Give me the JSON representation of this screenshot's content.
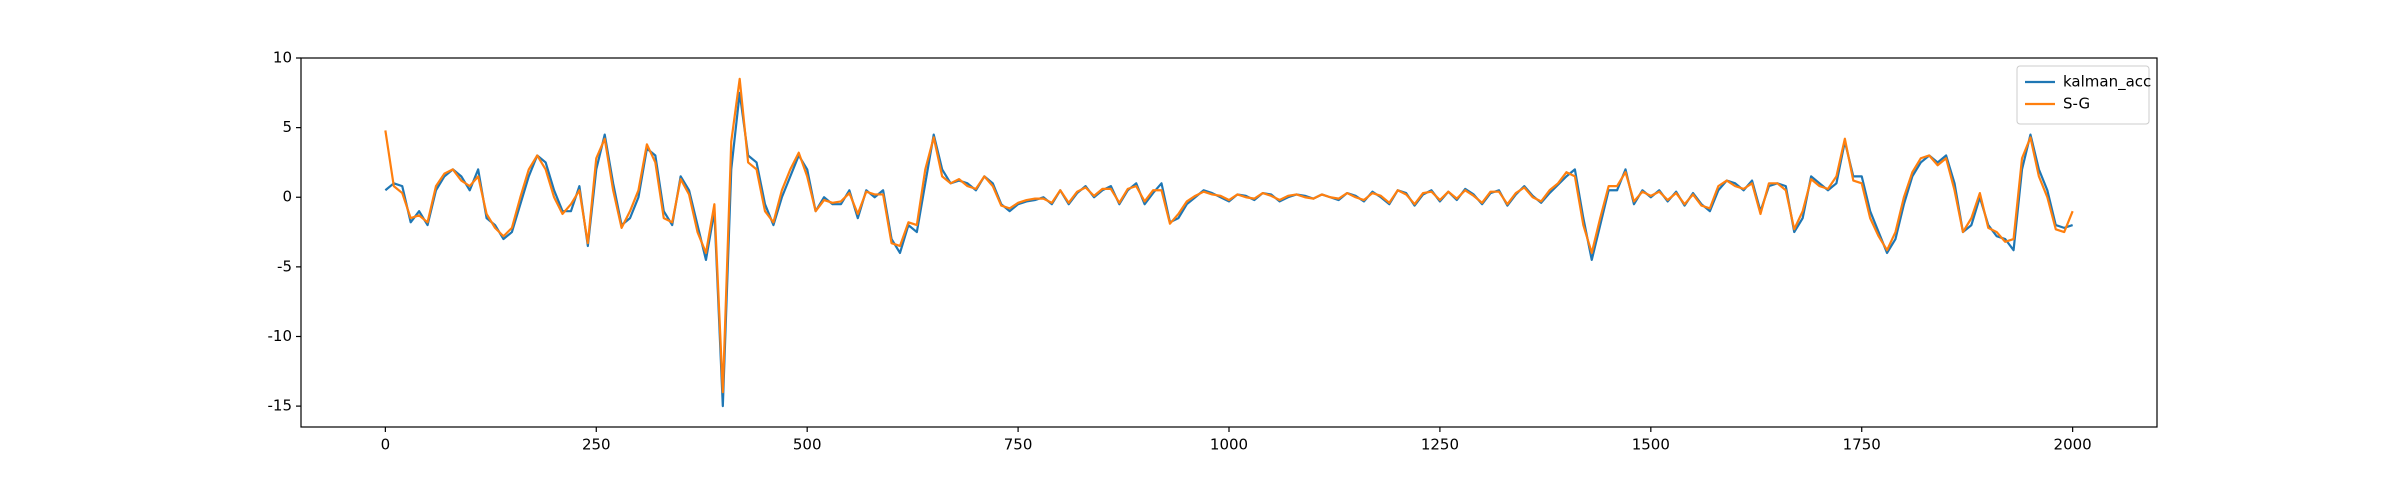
{
  "chart_data": {
    "type": "line",
    "x": [
      0,
      10,
      20,
      30,
      40,
      50,
      60,
      70,
      80,
      90,
      100,
      110,
      120,
      130,
      140,
      150,
      160,
      170,
      180,
      190,
      200,
      210,
      220,
      230,
      240,
      250,
      260,
      270,
      280,
      290,
      300,
      310,
      320,
      330,
      340,
      350,
      360,
      370,
      380,
      390,
      400,
      410,
      420,
      430,
      440,
      450,
      460,
      470,
      480,
      490,
      500,
      510,
      520,
      530,
      540,
      550,
      560,
      570,
      580,
      590,
      600,
      610,
      620,
      630,
      640,
      650,
      660,
      670,
      680,
      690,
      700,
      710,
      720,
      730,
      740,
      750,
      760,
      770,
      780,
      790,
      800,
      810,
      820,
      830,
      840,
      850,
      860,
      870,
      880,
      890,
      900,
      910,
      920,
      930,
      940,
      950,
      960,
      970,
      980,
      990,
      1000,
      1010,
      1020,
      1030,
      1040,
      1050,
      1060,
      1070,
      1080,
      1090,
      1100,
      1110,
      1120,
      1130,
      1140,
      1150,
      1160,
      1170,
      1180,
      1190,
      1200,
      1210,
      1220,
      1230,
      1240,
      1250,
      1260,
      1270,
      1280,
      1290,
      1300,
      1310,
      1320,
      1330,
      1340,
      1350,
      1360,
      1370,
      1380,
      1390,
      1400,
      1410,
      1420,
      1430,
      1440,
      1450,
      1460,
      1470,
      1480,
      1490,
      1500,
      1510,
      1520,
      1530,
      1540,
      1550,
      1560,
      1570,
      1580,
      1590,
      1600,
      1610,
      1620,
      1630,
      1640,
      1650,
      1660,
      1670,
      1680,
      1690,
      1700,
      1710,
      1720,
      1730,
      1740,
      1750,
      1760,
      1770,
      1780,
      1790,
      1800,
      1810,
      1820,
      1830,
      1840,
      1850,
      1860,
      1870,
      1880,
      1890,
      1900,
      1910,
      1920,
      1930,
      1940,
      1950,
      1960,
      1970,
      1980,
      1990,
      2000
    ],
    "series": [
      {
        "name": "kalman_acc",
        "color": "#1f77b4",
        "values": [
          0.5,
          1.0,
          0.8,
          -1.8,
          -1.0,
          -2.0,
          0.5,
          1.5,
          2.0,
          1.5,
          0.5,
          2.0,
          -1.5,
          -2.0,
          -3.0,
          -2.5,
          -0.5,
          1.5,
          3.0,
          2.5,
          0.5,
          -1.0,
          -1.0,
          0.8,
          -3.5,
          2.0,
          4.5,
          1.0,
          -2.0,
          -1.5,
          0.0,
          3.5,
          3.0,
          -1.0,
          -2.0,
          1.5,
          0.5,
          -2.0,
          -4.5,
          -1.0,
          -15.0,
          2.0,
          7.5,
          3.0,
          2.5,
          -0.5,
          -2.0,
          0.0,
          1.5,
          3.0,
          2.0,
          -1.0,
          0.0,
          -0.5,
          -0.5,
          0.5,
          -1.5,
          0.5,
          0.0,
          0.5,
          -3.0,
          -4.0,
          -2.0,
          -2.5,
          1.0,
          4.5,
          2.0,
          1.0,
          1.2,
          1.0,
          0.5,
          1.5,
          1.0,
          -0.5,
          -1.0,
          -0.5,
          -0.3,
          -0.2,
          0.0,
          -0.5,
          0.5,
          -0.5,
          0.3,
          0.8,
          0.0,
          0.5,
          0.8,
          -0.5,
          0.5,
          1.0,
          -0.5,
          0.3,
          1.0,
          -1.8,
          -1.5,
          -0.5,
          0.0,
          0.5,
          0.3,
          0,
          -0.3,
          0.2,
          0.1,
          -0.2,
          0.3,
          0.2,
          -0.3,
          0,
          0.2,
          0.1,
          -0.1,
          0.2,
          0,
          -0.2,
          0.3,
          0.1,
          -0.3,
          0.4,
          0,
          -0.5,
          0.5,
          0.3,
          -0.6,
          0.2,
          0.5,
          -0.3,
          0.4,
          -0.2,
          0.6,
          0.2,
          -0.5,
          0.3,
          0.5,
          -0.6,
          0.2,
          0.8,
          0.1,
          -0.4,
          0.3,
          0.9,
          1.5,
          2.0,
          -1.5,
          -4.5,
          -2.0,
          0.5,
          0.5,
          2.0,
          -0.5,
          0.5,
          0,
          0.5,
          -0.3,
          0.4,
          -0.6,
          0.3,
          -0.5,
          -1.0,
          0.5,
          1.2,
          1.0,
          0.5,
          1.2,
          -1.0,
          0.8,
          1.0,
          0.8,
          -2.5,
          -1.5,
          1.5,
          1.0,
          0.5,
          1.0,
          4.0,
          1.5,
          1.5,
          -1.0,
          -2.5,
          -4.0,
          -3.0,
          -0.5,
          1.5,
          2.5,
          3.0,
          2.5,
          3.0,
          1.0,
          -2.5,
          -2.0,
          0.0,
          -2.0,
          -2.8,
          -3.0,
          -3.8,
          2.0,
          4.5,
          2.0,
          0.5,
          -2.0,
          -2.2,
          -2.0
        ]
      },
      {
        "name": "S-G",
        "color": "#ff7f0e",
        "values": [
          4.8,
          0.8,
          0.3,
          -1.5,
          -1.3,
          -1.8,
          0.8,
          1.7,
          2.0,
          1.2,
          0.8,
          1.5,
          -1.2,
          -2.2,
          -2.8,
          -2.2,
          0.0,
          2.0,
          3.0,
          2.0,
          0.0,
          -1.2,
          -0.5,
          0.5,
          -3.3,
          2.8,
          4.2,
          0.5,
          -2.2,
          -1.0,
          0.5,
          3.8,
          2.5,
          -1.5,
          -1.8,
          1.3,
          0.2,
          -2.5,
          -4.0,
          -0.5,
          -14.0,
          4.0,
          8.5,
          2.5,
          2.0,
          -1.0,
          -1.8,
          0.5,
          2.0,
          3.2,
          1.5,
          -1.0,
          -0.2,
          -0.4,
          -0.3,
          0.3,
          -1.2,
          0.4,
          0.2,
          0.2,
          -3.3,
          -3.5,
          -1.8,
          -2.0,
          2.0,
          4.3,
          1.5,
          1.0,
          1.3,
          0.8,
          0.6,
          1.5,
          0.8,
          -0.6,
          -0.8,
          -0.4,
          -0.2,
          -0.1,
          -0.1,
          -0.4,
          0.5,
          -0.4,
          0.4,
          0.7,
          0.1,
          0.6,
          0.6,
          -0.4,
          0.6,
          0.8,
          -0.3,
          0.5,
          0.5,
          -1.9,
          -1.2,
          -0.3,
          0.1,
          0.4,
          0.2,
          0.1,
          -0.2,
          0.2,
          0.0,
          -0.1,
          0.3,
          0.1,
          -0.2,
          0.1,
          0.2,
          0.0,
          -0.1,
          0.2,
          0.0,
          -0.1,
          0.3,
          0.0,
          -0.2,
          0.3,
          0.1,
          -0.4,
          0.5,
          0.2,
          -0.5,
          0.3,
          0.4,
          -0.2,
          0.4,
          -0.1,
          0.5,
          0.1,
          -0.4,
          0.4,
          0.4,
          -0.5,
          0.3,
          0.7,
          0.0,
          -0.3,
          0.5,
          1.0,
          1.8,
          1.5,
          -2.0,
          -4.0,
          -1.5,
          0.8,
          0.8,
          1.8,
          -0.3,
          0.4,
          0.1,
          0.4,
          -0.2,
          0.3,
          -0.5,
          0.2,
          -0.6,
          -0.8,
          0.8,
          1.2,
          0.8,
          0.6,
          1.0,
          -1.2,
          1.0,
          1.0,
          0.5,
          -2.3,
          -1.0,
          1.3,
          0.8,
          0.6,
          1.5,
          4.2,
          1.2,
          1.0,
          -1.5,
          -2.8,
          -3.8,
          -2.5,
          0.0,
          1.8,
          2.8,
          3.0,
          2.3,
          2.8,
          0.5,
          -2.5,
          -1.5,
          0.3,
          -2.2,
          -2.5,
          -3.2,
          -3.0,
          2.8,
          4.3,
          1.5,
          0.0,
          -2.3,
          -2.5,
          -1.0
        ]
      }
    ],
    "xlim": [
      -100,
      2100
    ],
    "ylim": [
      -16.5,
      10
    ],
    "xticks": [
      0,
      250,
      500,
      750,
      1000,
      1250,
      1500,
      1750,
      2000
    ],
    "yticks": [
      -15,
      -10,
      -5,
      0,
      5,
      10
    ],
    "legend": "upper right",
    "grid": false
  }
}
